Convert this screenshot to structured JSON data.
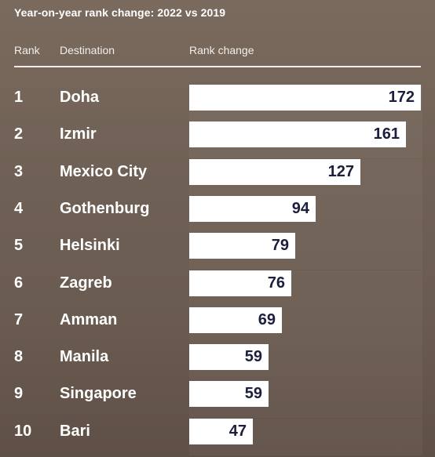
{
  "title": "Year-on-year rank change: 2022 vs 2019",
  "headers": {
    "rank": "Rank",
    "destination": "Destination",
    "change": "Rank change"
  },
  "chart_data": {
    "type": "bar",
    "orientation": "horizontal",
    "title": "Year-on-year rank change: 2022 vs 2019",
    "columns": [
      "Rank",
      "Destination",
      "Rank change"
    ],
    "ranks": [
      "1",
      "2",
      "3",
      "4",
      "5",
      "6",
      "7",
      "8",
      "9",
      "10"
    ],
    "categories": [
      "Doha",
      "Izmir",
      "Mexico City",
      "Gothenburg",
      "Helsinki",
      "Zagreb",
      "Amman",
      "Manila",
      "Singapore",
      "Bari"
    ],
    "values": [
      172,
      161,
      127,
      94,
      79,
      76,
      69,
      59,
      59,
      47
    ],
    "bar_color": "#ffffff",
    "value_color": "#1b1f3b",
    "xlim": [
      0,
      172
    ]
  }
}
